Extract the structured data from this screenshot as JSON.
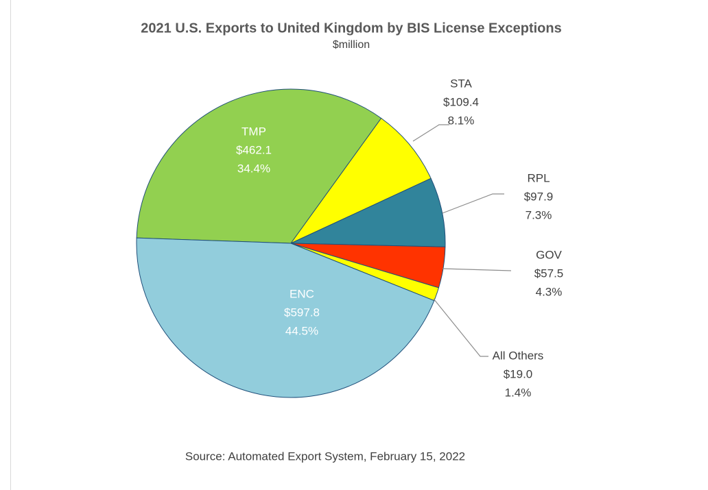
{
  "chart_data": {
    "type": "pie",
    "title": "2021 U.S. Exports to United Kingdom by BIS License Exceptions",
    "subtitle": "$million",
    "categories": [
      "TMP",
      "STA",
      "RPL",
      "GOV",
      "All Others",
      "ENC"
    ],
    "values": [
      462.1,
      109.4,
      97.9,
      57.5,
      19.0,
      597.8
    ],
    "value_labels": [
      "$462.1",
      "$109.4",
      "$97.9",
      "$57.5",
      "$19.0",
      "$597.8"
    ],
    "percent_labels": [
      "34.4%",
      "8.1%",
      "7.3%",
      "4.3%",
      "1.4%",
      "44.5%"
    ],
    "colors": [
      "#92d050",
      "#ffff00",
      "#31849b",
      "#ff3300",
      "#ffff00",
      "#92cddc"
    ],
    "source": "Source: Automated Export System, February 15, 2022"
  }
}
